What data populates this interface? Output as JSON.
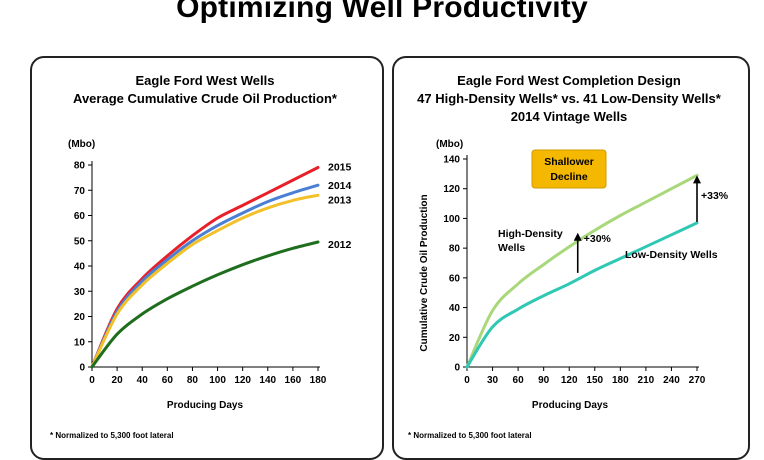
{
  "slide": {
    "title": "Optimizing Well Productivity"
  },
  "chart_data": [
    {
      "type": "line",
      "title": "Eagle Ford West Wells",
      "subtitle": "Average Cumulative Crude Oil Production*",
      "xlabel": "Producing Days",
      "ylabel": "",
      "y_unit": "(Mbo)",
      "xlim": [
        0,
        180
      ],
      "ylim": [
        0,
        80
      ],
      "x_ticks": [
        0,
        20,
        40,
        60,
        80,
        100,
        120,
        140,
        160,
        180
      ],
      "y_ticks": [
        0,
        10,
        20,
        30,
        40,
        50,
        60,
        70,
        80
      ],
      "grid": false,
      "x": [
        0,
        20,
        40,
        60,
        80,
        100,
        120,
        140,
        160,
        180
      ],
      "series": [
        {
          "name": "2015",
          "color": "#e8202a",
          "values": [
            0,
            23,
            35,
            44,
            52,
            59,
            64,
            69,
            74,
            79
          ]
        },
        {
          "name": "2014",
          "color": "#4a7fd4",
          "values": [
            0,
            22,
            34,
            42.5,
            50,
            56,
            61,
            65.5,
            69,
            72
          ]
        },
        {
          "name": "2013",
          "color": "#f2c12a",
          "values": [
            0,
            21,
            32.5,
            41,
            48.5,
            54,
            59,
            63,
            66,
            68
          ]
        },
        {
          "name": "2012",
          "color": "#1e6e1e",
          "values": [
            0,
            13,
            21,
            27,
            32,
            36.5,
            40.5,
            44,
            47,
            49.5
          ]
        }
      ],
      "footnote": "* Normalized to 5,300 foot lateral"
    },
    {
      "type": "line",
      "title": "Eagle Ford West Completion Design",
      "subtitle": "47 High-Density Wells* vs. 41 Low-Density Wells*",
      "subtitle2": "2014 Vintage Wells",
      "xlabel": "Producing Days",
      "ylabel": "Cumulative Crude Oil Production",
      "y_unit": "(Mbo)",
      "xlim": [
        0,
        270
      ],
      "ylim": [
        0,
        140
      ],
      "x_ticks": [
        0,
        30,
        60,
        90,
        120,
        150,
        180,
        210,
        240,
        270
      ],
      "y_ticks": [
        0,
        20,
        40,
        60,
        80,
        100,
        120,
        140
      ],
      "grid": false,
      "x": [
        0,
        30,
        60,
        90,
        120,
        150,
        180,
        210,
        240,
        270
      ],
      "series": [
        {
          "name": "High-Density Wells",
          "color": "#a8d87a",
          "values": [
            0,
            38,
            56,
            69,
            81,
            92,
            102,
            111,
            120,
            129
          ]
        },
        {
          "name": "Low-Density Wells",
          "color": "#2ec8b4",
          "values": [
            0,
            27,
            39,
            48,
            56,
            65,
            73,
            81,
            89,
            97
          ]
        }
      ],
      "annotations": {
        "badge": "Shallower Decline",
        "badge_color": "#f5b800",
        "arrow_130": "+30%",
        "arrow_270": "+33%"
      },
      "footnote": "* Normalized to 5,300 foot lateral"
    }
  ]
}
